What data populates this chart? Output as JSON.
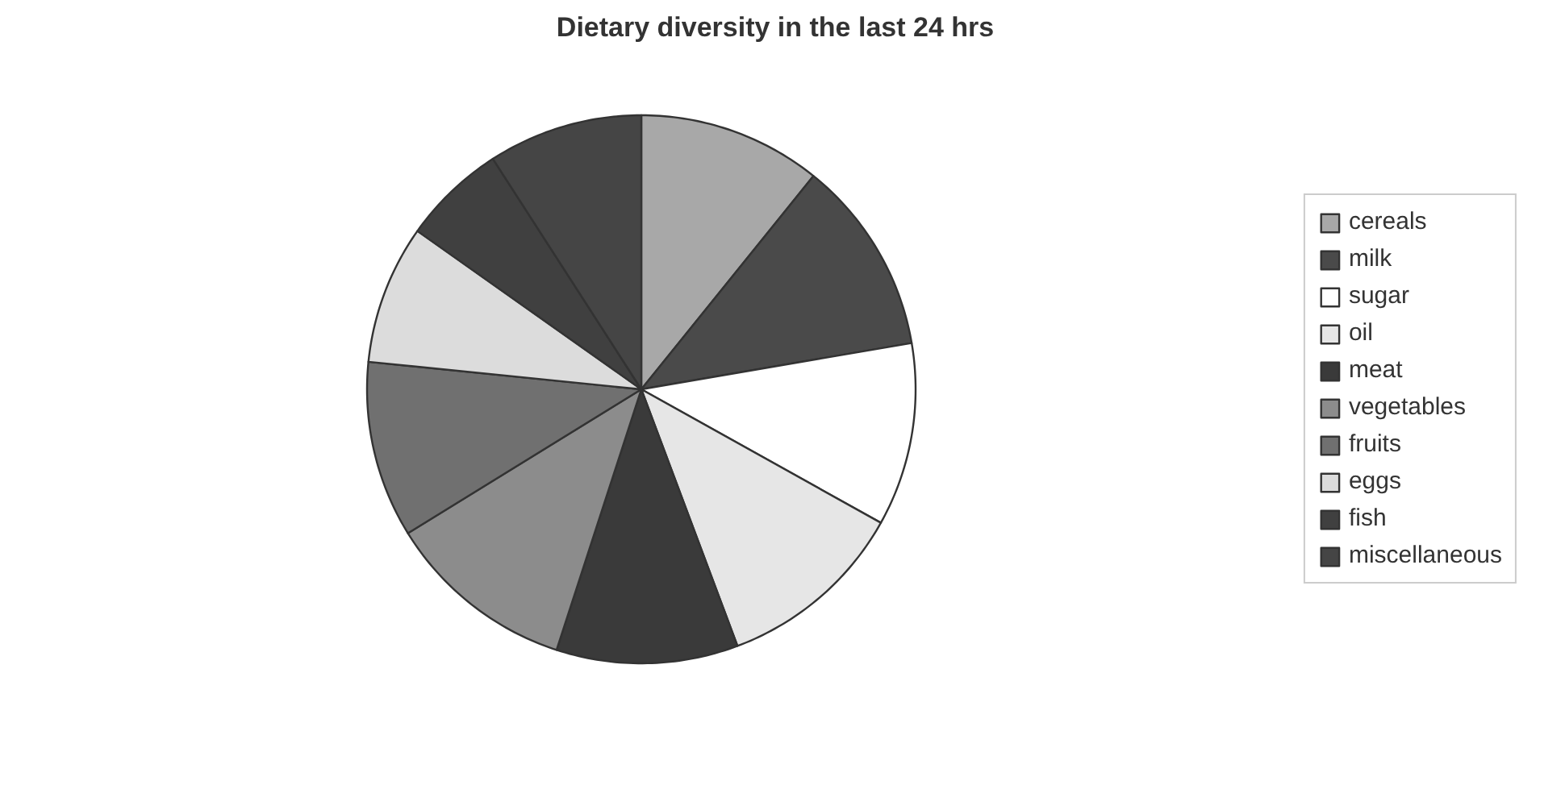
{
  "chart_data": {
    "type": "pie",
    "title": "Dietary diversity in the last 24 hrs",
    "categories": [
      "cereals",
      "milk",
      "sugar",
      "oil",
      "meat",
      "vegetables",
      "fruits",
      "eggs",
      "fish",
      "miscellaneous"
    ],
    "values": [
      10.8,
      11.5,
      10.8,
      11.2,
      10.7,
      11.2,
      10.4,
      8.2,
      6.1,
      9.1
    ],
    "colors": [
      "#a8a8a8",
      "#4a4a4a",
      "#ffffff",
      "#e6e6e6",
      "#3a3a3a",
      "#8c8c8c",
      "#707070",
      "#dcdcdc",
      "#404040",
      "#454545"
    ],
    "legend": "right"
  }
}
